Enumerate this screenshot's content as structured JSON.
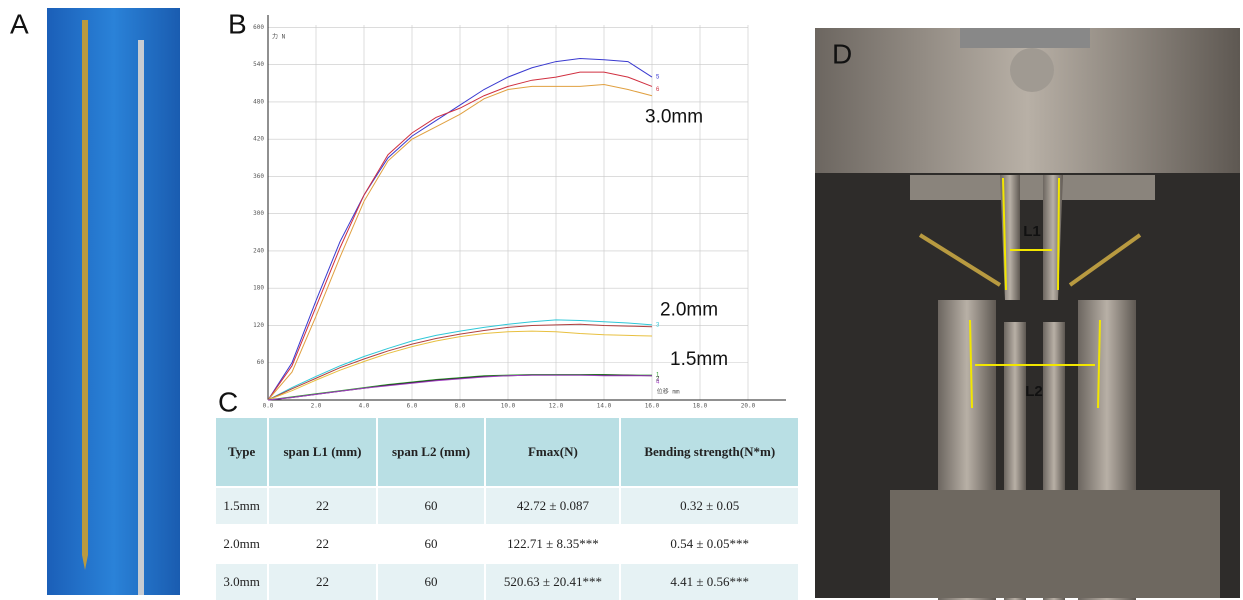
{
  "panels": {
    "a": "A",
    "b": "B",
    "c": "C",
    "d": "D"
  },
  "chart_data": {
    "type": "line",
    "y_label": "力 N",
    "x_label": "位移 mm",
    "annotations": [
      "3.0mm",
      "2.0mm",
      "1.5mm"
    ],
    "x": [
      0,
      1,
      2,
      3,
      4,
      5,
      6,
      7,
      8,
      9,
      10,
      11,
      12,
      13,
      14,
      15,
      16
    ],
    "series": [
      {
        "name": "5",
        "color": "#3a3ad0",
        "values": [
          0,
          60,
          160,
          255,
          330,
          390,
          425,
          450,
          475,
          500,
          520,
          535,
          545,
          550,
          548,
          545,
          520
        ]
      },
      {
        "name": "6",
        "color": "#d03040",
        "values": [
          0,
          55,
          150,
          245,
          330,
          395,
          430,
          455,
          470,
          490,
          505,
          515,
          520,
          528,
          528,
          520,
          505
        ]
      },
      {
        "color": "#e0a040",
        "values": [
          0,
          45,
          135,
          230,
          320,
          385,
          420,
          440,
          460,
          485,
          500,
          505,
          505,
          505,
          508,
          500,
          490
        ]
      },
      {
        "name": "3",
        "color": "#30c8d8",
        "values": [
          0,
          20,
          38,
          55,
          70,
          83,
          95,
          104,
          111,
          117,
          122,
          126,
          129,
          128,
          126,
          124,
          121
        ]
      },
      {
        "color": "#b04040",
        "values": [
          0,
          18,
          35,
          52,
          66,
          79,
          90,
          99,
          106,
          112,
          117,
          120,
          121,
          122,
          120,
          119,
          118
        ]
      },
      {
        "color": "#e8c040",
        "values": [
          0,
          15,
          32,
          48,
          62,
          75,
          86,
          95,
          102,
          107,
          110,
          111,
          110,
          107,
          105,
          104,
          103
        ]
      },
      {
        "name": "1",
        "color": "#30a030",
        "values": [
          0,
          5,
          10,
          15,
          20,
          25,
          29,
          33,
          36,
          39,
          40,
          41,
          41,
          41,
          41,
          40,
          40
        ]
      },
      {
        "name": "2",
        "color": "#222222",
        "values": [
          0,
          4,
          9,
          14,
          19,
          24,
          28,
          32,
          35,
          38,
          39,
          40,
          40,
          40,
          40,
          40,
          39
        ]
      },
      {
        "name": "4",
        "color": "#a040c0",
        "values": [
          0,
          4,
          9,
          14,
          19,
          23,
          27,
          31,
          34,
          37,
          39,
          40,
          40,
          40,
          39,
          39,
          39
        ]
      }
    ],
    "xlim": [
      0,
      22
    ],
    "ylim": [
      0,
      620
    ],
    "xticks": [
      {
        "value": 0,
        "label": "0.0"
      },
      {
        "value": 2,
        "label": "2.0"
      },
      {
        "value": 4,
        "label": "4.0"
      },
      {
        "value": 6,
        "label": "6.0"
      },
      {
        "value": 8,
        "label": "8.0"
      },
      {
        "value": 10,
        "label": "10.0"
      },
      {
        "value": 12,
        "label": "12.0"
      },
      {
        "value": 14,
        "label": "14.0"
      },
      {
        "value": 16,
        "label": "16.0"
      },
      {
        "value": 18,
        "label": "18.0"
      },
      {
        "value": 20,
        "label": "20.0"
      }
    ],
    "yticks": [
      60,
      120,
      180,
      240,
      300,
      360,
      420,
      480,
      540,
      600
    ],
    "grid": true
  },
  "table": {
    "header": [
      "Type",
      "span L1 (mm)",
      "span L2 (mm)",
      "Fmax(N)",
      "Bending strength(N*m)"
    ],
    "rows": [
      [
        "1.5mm",
        "22",
        "60",
        "42.72 ± 0.087",
        "0.32 ± 0.05"
      ],
      [
        "2.0mm",
        "22",
        "60",
        "122.71 ± 8.35***",
        "0.54 ± 0.05***"
      ],
      [
        "3.0mm",
        "22",
        "60",
        "520.63 ± 20.41***",
        "4.41 ± 0.56***"
      ]
    ]
  },
  "photo_d": {
    "labels": [
      "L1",
      "L2"
    ]
  }
}
